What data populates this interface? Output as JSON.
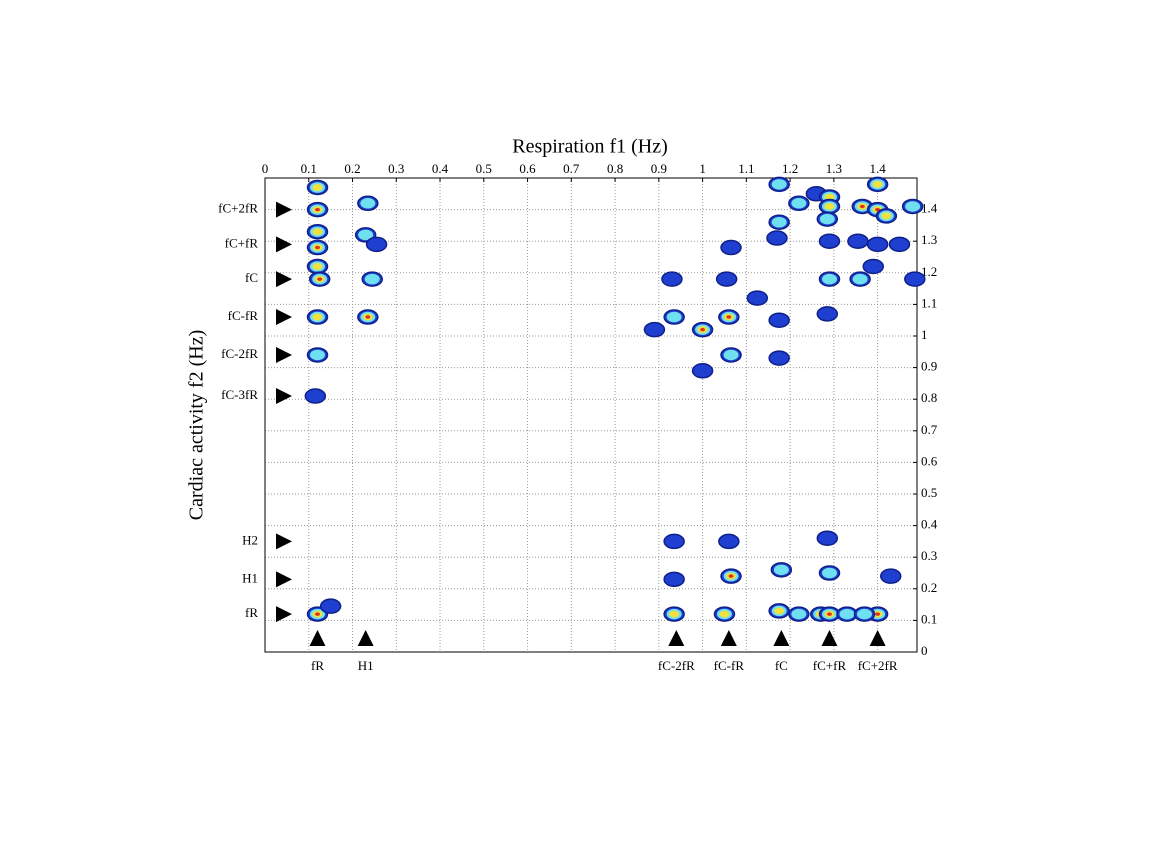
{
  "chart_data": {
    "type": "contour",
    "x_label": "Respiration  f1 (Hz)",
    "y_label": "Cardiac activity f2 (Hz)",
    "xlim": [
      0,
      1.49
    ],
    "ylim": [
      0,
      1.5
    ],
    "xticks": [
      0,
      0.1,
      0.2,
      0.3,
      0.4,
      0.5,
      0.6,
      0.7,
      0.8,
      0.9,
      1,
      1.1,
      1.2,
      1.3,
      1.4
    ],
    "yticks": [
      0,
      0.1,
      0.2,
      0.3,
      0.4,
      0.5,
      0.6,
      0.7,
      0.8,
      0.9,
      1,
      1.1,
      1.2,
      1.3,
      1.4
    ],
    "grid": true,
    "level_colors": [
      "#1f3fd0",
      "#6fe0f0",
      "#f0e040",
      "#e03020"
    ],
    "peaks": {
      "x": [
        0.12,
        0.12,
        0.12,
        0.12,
        0.12,
        0.125,
        0.12,
        0.12,
        0.115,
        0.12,
        0.15,
        0.235,
        0.23,
        0.255,
        0.245,
        0.235,
        0.93,
        0.935,
        0.89,
        0.935,
        0.935,
        0.935,
        1.0,
        1.0,
        1.06,
        1.065,
        1.055,
        1.065,
        1.06,
        1.065,
        1.05,
        1.125,
        1.175,
        1.175,
        1.175,
        1.175,
        1.17,
        1.18,
        1.175,
        1.22,
        1.27,
        1.29,
        1.33,
        1.22,
        1.26,
        1.29,
        1.29,
        1.285,
        1.29,
        1.29,
        1.285,
        1.285,
        1.29,
        1.36,
        1.365,
        1.4,
        1.42,
        1.4,
        1.355,
        1.4,
        1.45,
        1.39,
        1.4,
        1.37,
        1.43,
        1.48,
        1.485
      ],
      "y": [
        1.47,
        1.4,
        1.33,
        1.28,
        1.22,
        1.18,
        1.06,
        0.94,
        0.81,
        0.12,
        0.145,
        1.42,
        1.32,
        1.29,
        1.18,
        1.06,
        1.18,
        1.06,
        1.02,
        0.12,
        0.35,
        0.23,
        1.02,
        0.89,
        1.06,
        1.28,
        1.18,
        0.94,
        0.35,
        0.24,
        0.12,
        1.12,
        1.05,
        0.93,
        1.48,
        1.36,
        1.31,
        0.26,
        0.13,
        0.12,
        0.12,
        0.12,
        0.12,
        1.42,
        1.45,
        1.44,
        1.41,
        1.37,
        1.3,
        1.18,
        1.07,
        0.36,
        0.25,
        1.18,
        1.41,
        1.4,
        1.38,
        1.48,
        1.3,
        1.29,
        1.29,
        1.22,
        0.12,
        0.12,
        0.24,
        1.41,
        1.18
      ],
      "levels": [
        3,
        4,
        3,
        4,
        3,
        4,
        3,
        2,
        1,
        4,
        1,
        2,
        2,
        1,
        2,
        4,
        1,
        2,
        1,
        3,
        1,
        1,
        4,
        1,
        4,
        1,
        1,
        2,
        1,
        4,
        3,
        1,
        1,
        1,
        2,
        2,
        1,
        2,
        3,
        2,
        3,
        4,
        2,
        2,
        1,
        3,
        3,
        2,
        1,
        2,
        1,
        1,
        2,
        2,
        4,
        4,
        3,
        3,
        1,
        1,
        1,
        1,
        4,
        2,
        1,
        2,
        1
      ]
    },
    "y_markers": [
      {
        "label": "fC+2fR",
        "value": 1.4
      },
      {
        "label": "fC+fR",
        "value": 1.29
      },
      {
        "label": "fC",
        "value": 1.18
      },
      {
        "label": "fC-fR",
        "value": 1.06
      },
      {
        "label": "fC-2fR",
        "value": 0.94
      },
      {
        "label": "fC-3fR",
        "value": 0.81
      },
      {
        "label": "H2",
        "value": 0.35
      },
      {
        "label": "H1",
        "value": 0.23
      },
      {
        "label": "fR",
        "value": 0.12
      }
    ],
    "x_markers": [
      {
        "label": "fR",
        "value": 0.12
      },
      {
        "label": "H1",
        "value": 0.23
      },
      {
        "label": "fC-2fR",
        "value": 0.94
      },
      {
        "label": "fC-fR",
        "value": 1.06
      },
      {
        "label": "fC",
        "value": 1.18
      },
      {
        "label": "fC+fR",
        "value": 1.29
      },
      {
        "label": "fC+2fR",
        "value": 1.4
      }
    ]
  }
}
